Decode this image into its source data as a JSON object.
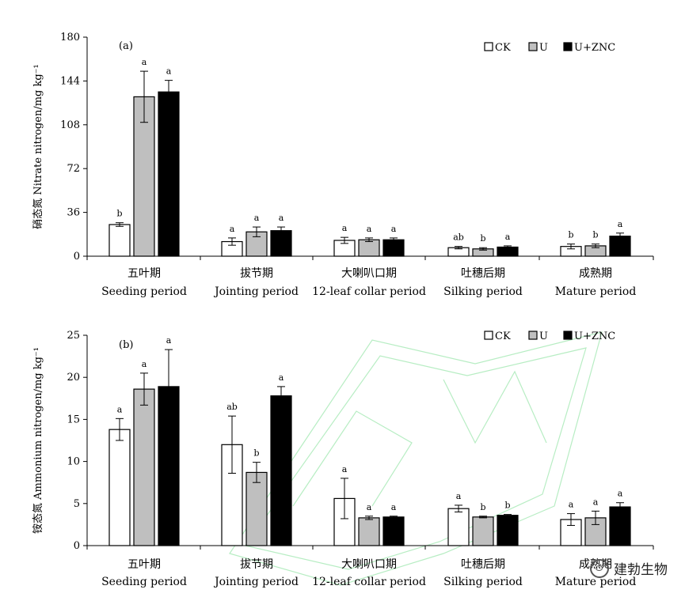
{
  "colors": {
    "CK": "#ffffff",
    "U": "#bfbfbf",
    "U+ZNC": "#000000",
    "stroke": "#000000",
    "watermark": "#33cc55"
  },
  "legend": [
    "CK",
    "U",
    "U+ZNC"
  ],
  "categories_cn": [
    "五叶期",
    "拔节期",
    "大喇叭口期",
    "吐穗后期",
    "成熟期"
  ],
  "categories_en": [
    "Seeding period",
    "Jointing period",
    "12-leaf collar period",
    "Silking period",
    "Mature period"
  ],
  "watermark_text": "建勃生物",
  "chart_data": [
    {
      "type": "bar",
      "panel_label": "(a)",
      "ylabel": "硝态氮 Nitrate nitrogen/mg kg⁻¹",
      "ylim": [
        0,
        180
      ],
      "yticks": [
        0,
        36,
        72,
        108,
        144,
        180
      ],
      "categories": [
        "五叶期 Seeding period",
        "拔节期 Jointing period",
        "大喇叭口期 12-leaf collar period",
        "吐穗后期 Silking period",
        "成熟期 Mature period"
      ],
      "series": [
        {
          "name": "CK",
          "values": [
            26,
            12,
            13,
            7,
            8
          ],
          "errors": [
            1.5,
            3,
            2.5,
            1,
            2
          ],
          "letters": [
            "b",
            "a",
            "a",
            "ab",
            "b"
          ]
        },
        {
          "name": "U",
          "values": [
            131,
            20,
            13.5,
            6,
            8.5
          ],
          "errors": [
            21,
            4,
            1.5,
            1,
            1.5
          ],
          "letters": [
            "a",
            "a",
            "a",
            "b",
            "b"
          ]
        },
        {
          "name": "U+ZNC",
          "values": [
            135,
            21,
            13.5,
            7.5,
            16.5
          ],
          "errors": [
            9.5,
            3,
            1.5,
            1,
            2.5
          ],
          "letters": [
            "a",
            "a",
            "a",
            "a",
            "a"
          ]
        }
      ]
    },
    {
      "type": "bar",
      "panel_label": "(b)",
      "ylabel": "铵态氮 Ammonium nitrogen/mg kg⁻¹",
      "ylim": [
        0,
        25
      ],
      "yticks": [
        0,
        5,
        10,
        15,
        20,
        25
      ],
      "categories": [
        "五叶期 Seeding period",
        "拔节期 Jointing period",
        "大喇叭口期 12-leaf collar period",
        "吐穗后期 Silking period",
        "成熟期 Mature period"
      ],
      "series": [
        {
          "name": "CK",
          "values": [
            13.8,
            12.0,
            5.6,
            4.4,
            3.1
          ],
          "errors": [
            1.3,
            3.4,
            2.4,
            0.4,
            0.7
          ],
          "letters": [
            "a",
            "ab",
            "a",
            "a",
            "a"
          ]
        },
        {
          "name": "U",
          "values": [
            18.6,
            8.7,
            3.3,
            3.4,
            3.3
          ],
          "errors": [
            1.9,
            1.2,
            0.2,
            0.1,
            0.8
          ],
          "letters": [
            "a",
            "b",
            "a",
            "b",
            "a"
          ]
        },
        {
          "name": "U+ZNC",
          "values": [
            18.9,
            17.8,
            3.4,
            3.6,
            4.6
          ],
          "errors": [
            4.4,
            1.1,
            0.1,
            0.1,
            0.5
          ],
          "letters": [
            "a",
            "a",
            "a",
            "b",
            "a"
          ]
        }
      ]
    }
  ]
}
